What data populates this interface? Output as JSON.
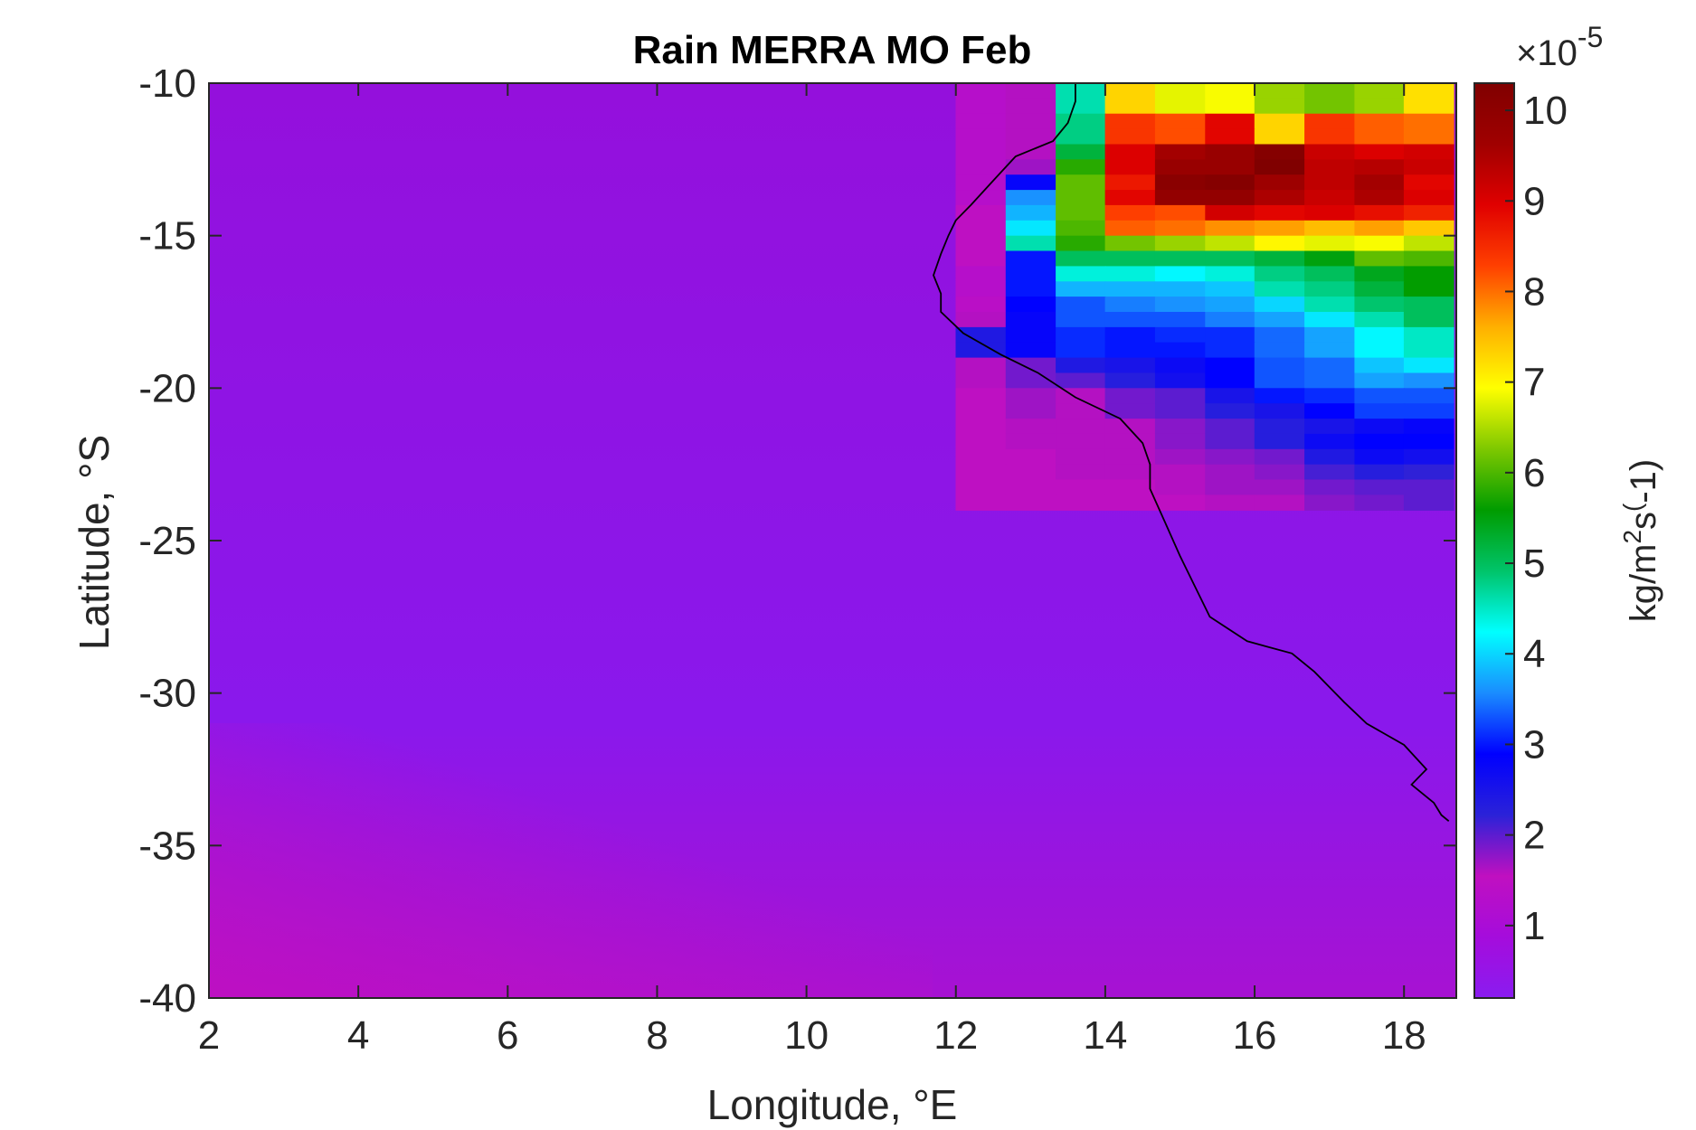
{
  "chart_data": {
    "type": "heatmap",
    "title": "Rain MERRA MO Feb",
    "xlabel": "Longitude, °E",
    "ylabel": "Latitude, °S",
    "xlim": [
      2,
      18.7
    ],
    "ylim": [
      -40,
      -10
    ],
    "x_ticks": [
      2,
      4,
      6,
      8,
      10,
      12,
      14,
      16,
      18
    ],
    "y_ticks": [
      -10,
      -15,
      -20,
      -25,
      -30,
      -35,
      -40
    ],
    "colorbar": {
      "label_base": "kg/m",
      "label_sup1": "2",
      "label_mid": "s",
      "label_sup2": "(",
      "label_end": "-1)",
      "multiplier_base": "×10",
      "multiplier_exp": "-5",
      "range": [
        0.2,
        10.3
      ],
      "ticks": [
        1,
        2,
        3,
        4,
        5,
        6,
        7,
        8,
        9,
        10
      ],
      "colormap": [
        "#8a1cf0",
        "#a50cdc",
        "#c010c0",
        "#2b22d8",
        "#0000ff",
        "#1a8cff",
        "#00ffff",
        "#00c46a",
        "#009c00",
        "#7ec800",
        "#ffff00",
        "#ffb000",
        "#ff4000",
        "#e00000",
        "#a00000",
        "#800000"
      ]
    },
    "grid_step_lon": 0.667,
    "grid_step_lat": 0.5,
    "lat_rows": [
      -10.25,
      -10.75,
      -11.25,
      -11.75,
      -12.25,
      -12.75,
      -13.25,
      -13.75,
      -14.25,
      -14.75,
      -15.25,
      -15.75,
      -16.25,
      -16.75,
      -17.25,
      -17.75,
      -18.25,
      -18.75,
      -19.25,
      -19.75,
      -20.25,
      -20.75,
      -21.25,
      -21.75,
      -22.25,
      -22.75,
      -23.25,
      -23.75
    ],
    "lon_cols": [
      12.33,
      13.0,
      13.67,
      14.33,
      15.0,
      15.67,
      16.33,
      17.0,
      17.67,
      18.33
    ],
    "values_near_coast": [
      [
        1.3,
        1.6,
        4.6,
        7.3,
        6.8,
        6.9,
        6.4,
        6.2,
        6.4,
        7.2
      ],
      [
        1.3,
        1.6,
        4.6,
        7.3,
        6.8,
        6.9,
        6.4,
        6.2,
        6.4,
        7.2
      ],
      [
        1.3,
        1.6,
        4.8,
        8.4,
        8.2,
        8.9,
        7.3,
        8.4,
        8.1,
        8.0
      ],
      [
        1.3,
        1.6,
        4.8,
        8.4,
        8.2,
        8.9,
        7.3,
        8.4,
        8.1,
        8.0
      ],
      [
        1.3,
        1.6,
        5.2,
        9.0,
        9.6,
        9.8,
        10.2,
        9.2,
        9.0,
        9.1
      ],
      [
        1.3,
        1.7,
        5.8,
        9.0,
        9.8,
        9.8,
        10.3,
        9.3,
        9.4,
        9.2
      ],
      [
        1.3,
        2.8,
        6.1,
        8.7,
        10.1,
        10.2,
        9.7,
        9.3,
        9.6,
        8.9
      ],
      [
        1.3,
        3.6,
        6.1,
        8.9,
        9.9,
        9.9,
        9.5,
        9.2,
        9.5,
        9.0
      ],
      [
        1.5,
        3.8,
        6.1,
        8.3,
        8.2,
        9.1,
        8.9,
        9.0,
        8.8,
        8.6
      ],
      [
        1.5,
        4.1,
        6.0,
        8.1,
        8.0,
        7.8,
        7.7,
        7.5,
        7.7,
        7.4
      ],
      [
        1.5,
        4.6,
        5.8,
        6.2,
        6.4,
        6.6,
        7.0,
        6.8,
        6.9,
        6.6
      ],
      [
        1.5,
        3.0,
        5.0,
        5.0,
        5.0,
        5.0,
        5.2,
        5.5,
        6.1,
        6.0
      ],
      [
        1.3,
        3.0,
        4.4,
        4.4,
        4.2,
        4.4,
        4.8,
        5.0,
        5.4,
        5.6
      ],
      [
        1.3,
        3.0,
        3.8,
        3.8,
        3.8,
        3.9,
        4.6,
        4.8,
        5.2,
        5.6
      ],
      [
        1.4,
        2.9,
        3.3,
        3.5,
        3.6,
        3.7,
        4.0,
        4.6,
        4.9,
        5.0
      ],
      [
        1.6,
        2.8,
        3.3,
        3.3,
        3.3,
        3.5,
        3.7,
        4.1,
        4.6,
        5.0
      ],
      [
        2.4,
        2.8,
        3.1,
        3.0,
        3.1,
        3.1,
        3.4,
        3.7,
        4.2,
        4.5
      ],
      [
        2.4,
        2.8,
        3.1,
        3.0,
        3.0,
        3.1,
        3.4,
        3.7,
        4.2,
        4.5
      ],
      [
        1.6,
        1.9,
        2.4,
        2.5,
        2.7,
        2.9,
        3.3,
        3.4,
        3.9,
        4.1
      ],
      [
        1.6,
        1.9,
        2.0,
        2.3,
        2.6,
        2.9,
        3.3,
        3.4,
        3.7,
        3.6
      ],
      [
        1.5,
        1.7,
        1.6,
        1.9,
        2.0,
        2.5,
        3.0,
        3.1,
        3.3,
        3.3
      ],
      [
        1.5,
        1.7,
        1.6,
        1.9,
        2.0,
        2.3,
        2.5,
        2.9,
        3.2,
        3.2
      ],
      [
        1.5,
        1.6,
        1.6,
        1.6,
        1.8,
        2.0,
        2.3,
        2.5,
        2.7,
        2.8
      ],
      [
        1.5,
        1.6,
        1.6,
        1.6,
        1.8,
        2.0,
        2.3,
        2.7,
        2.9,
        2.9
      ],
      [
        1.5,
        1.5,
        1.6,
        1.6,
        1.7,
        1.8,
        1.9,
        2.4,
        2.7,
        2.6
      ],
      [
        1.5,
        1.5,
        1.6,
        1.6,
        1.6,
        1.7,
        1.8,
        2.1,
        2.3,
        2.2
      ],
      [
        1.5,
        1.5,
        1.5,
        1.5,
        1.6,
        1.7,
        1.7,
        1.9,
        2.0,
        2.0
      ],
      [
        1.5,
        1.5,
        1.5,
        1.5,
        1.5,
        1.6,
        1.6,
        1.8,
        1.9,
        2.0
      ]
    ],
    "background_value": 1.0,
    "coastline": [
      [
        13.6,
        -10.0
      ],
      [
        13.6,
        -10.6
      ],
      [
        13.5,
        -11.3
      ],
      [
        13.3,
        -11.9
      ],
      [
        12.8,
        -12.4
      ],
      [
        12.5,
        -13.2
      ],
      [
        12.2,
        -14.0
      ],
      [
        12.0,
        -14.5
      ],
      [
        11.9,
        -15.0
      ],
      [
        11.8,
        -15.6
      ],
      [
        11.7,
        -16.3
      ],
      [
        11.8,
        -16.9
      ],
      [
        11.8,
        -17.5
      ],
      [
        12.1,
        -18.2
      ],
      [
        12.6,
        -18.9
      ],
      [
        13.1,
        -19.5
      ],
      [
        13.6,
        -20.3
      ],
      [
        14.2,
        -21.0
      ],
      [
        14.5,
        -21.8
      ],
      [
        14.6,
        -22.5
      ],
      [
        14.6,
        -23.3
      ],
      [
        14.8,
        -24.4
      ],
      [
        15.0,
        -25.5
      ],
      [
        15.2,
        -26.5
      ],
      [
        15.4,
        -27.5
      ],
      [
        15.9,
        -28.3
      ],
      [
        16.5,
        -28.7
      ],
      [
        16.8,
        -29.3
      ],
      [
        17.2,
        -30.3
      ],
      [
        17.5,
        -31.0
      ],
      [
        18.0,
        -31.7
      ],
      [
        18.3,
        -32.5
      ],
      [
        18.1,
        -33.0
      ],
      [
        18.4,
        -33.6
      ],
      [
        18.5,
        -34.0
      ],
      [
        18.6,
        -34.2
      ]
    ]
  }
}
